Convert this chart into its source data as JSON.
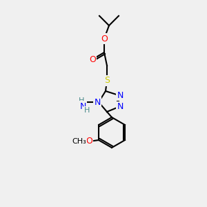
{
  "background_color": "#f0f0f0",
  "bond_color": "#000000",
  "atom_colors": {
    "O": "#ff0000",
    "N": "#0000ff",
    "S": "#cccc00",
    "C": "#000000",
    "H": "#4a8a8a"
  },
  "figsize": [
    3.0,
    3.0
  ],
  "dpi": 100
}
